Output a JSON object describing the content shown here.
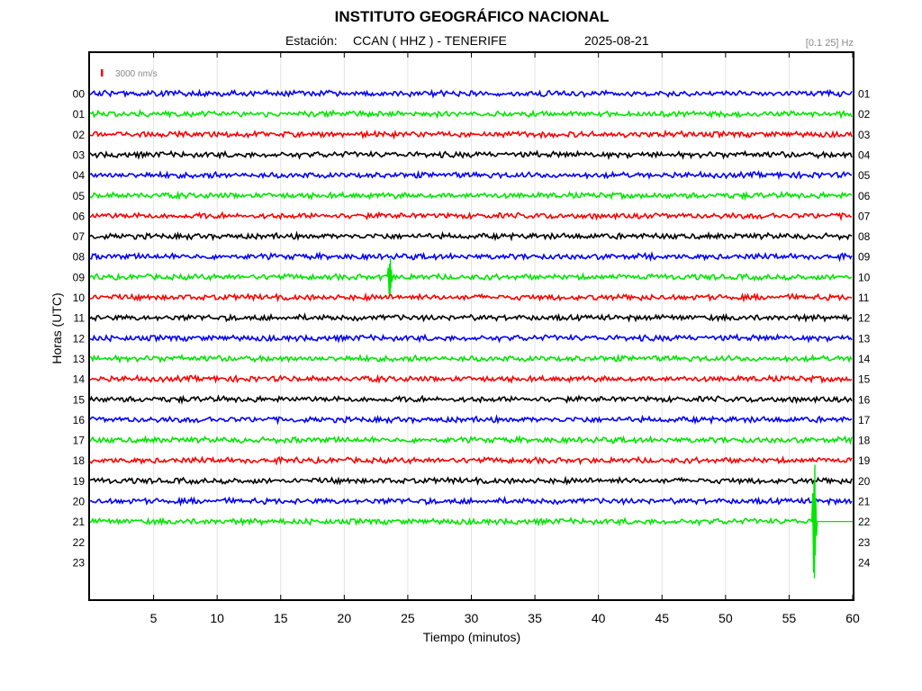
{
  "header": {
    "title": "INSTITUTO GEOGRÁFICO NACIONAL",
    "station_label": "Estación:",
    "station": "CCAN ( HHZ ) - TENERIFE",
    "date": "2025-08-21",
    "filter": "[0.1 25] Hz"
  },
  "chart_data": {
    "type": "line",
    "title": "INSTITUTO GEOGRÁFICO NACIONAL",
    "xlabel": "Tiempo (minutos)",
    "ylabel": "Horas (UTC)",
    "xlim": [
      0,
      60
    ],
    "xticks": [
      5,
      10,
      15,
      20,
      25,
      30,
      35,
      40,
      45,
      50,
      55,
      60
    ],
    "grid": "vertical",
    "scale_bar": {
      "value": 3000,
      "unit": "nm/s",
      "label": "3000 nm/s",
      "color": "#ff0000"
    },
    "left_labels": [
      "00",
      "01",
      "02",
      "03",
      "04",
      "05",
      "06",
      "07",
      "08",
      "09",
      "10",
      "11",
      "12",
      "13",
      "14",
      "15",
      "16",
      "17",
      "18",
      "19",
      "20",
      "21",
      "22",
      "23"
    ],
    "right_labels": [
      "01",
      "02",
      "03",
      "04",
      "05",
      "06",
      "07",
      "08",
      "09",
      "10",
      "11",
      "12",
      "13",
      "14",
      "15",
      "16",
      "17",
      "18",
      "19",
      "20",
      "21",
      "22",
      "23",
      "24"
    ],
    "trace_colors": [
      "#0000ff",
      "#00e600",
      "#ff0000",
      "#000000"
    ],
    "recorded_hours": 22,
    "events": [
      {
        "hour": 9,
        "minute": 23.6,
        "relative_amplitude": 1.0
      },
      {
        "hour": 21,
        "minute": 57.0,
        "relative_amplitude": 3.0
      }
    ],
    "last_trace_end_minute": 57.0
  }
}
